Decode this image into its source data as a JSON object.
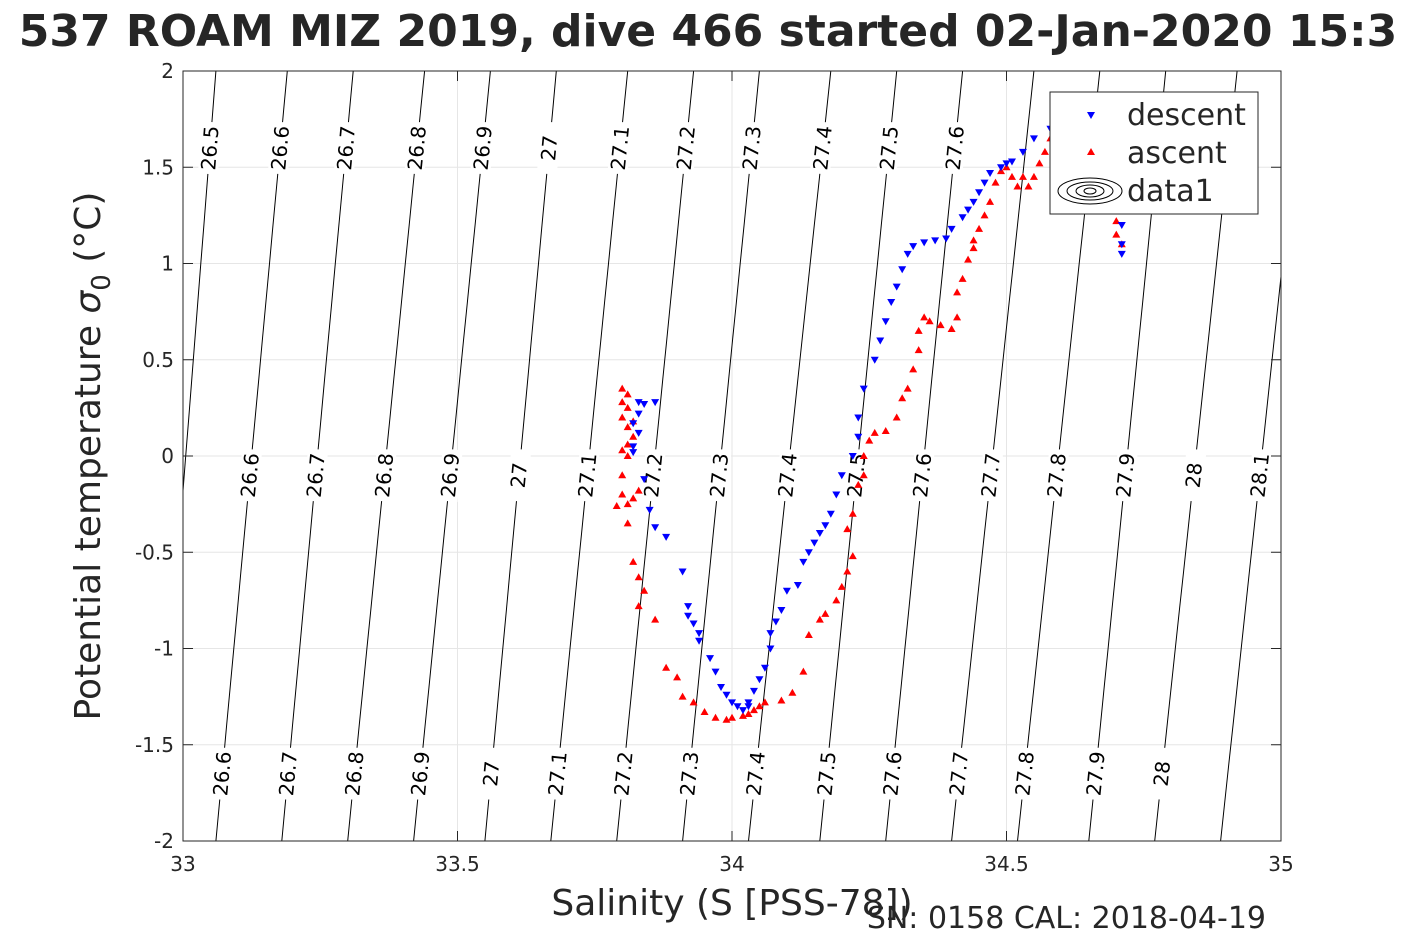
{
  "chart_data": {
    "type": "scatter",
    "title": "537 ROAM MIZ 2019, dive 466 started 02-Jan-2020 15:3",
    "xlabel": "Salinity (S [PSS-78])",
    "ylabel_main": "Potential temperature ",
    "ylabel_sigma": "σ",
    "ylabel_sub": "0",
    "ylabel_unit": " (°C)",
    "footer": "SN: 0158  CAL: 2018-04-19",
    "xlim": [
      33,
      35
    ],
    "ylim": [
      -2,
      2
    ],
    "grid": true,
    "legend_placement": "top-right",
    "xticks": [
      33,
      33.5,
      34,
      34.5,
      35
    ],
    "xtick_labels": [
      "33",
      "33.5",
      "34",
      "34.5",
      "35"
    ],
    "yticks": [
      -2,
      -1.5,
      -1,
      -0.5,
      0,
      0.5,
      1,
      1.5,
      2
    ],
    "ytick_labels": [
      "-2",
      "-1.5",
      "-1",
      "-0.5",
      "0",
      "0.5",
      "1",
      "1.5",
      "2"
    ],
    "colors": {
      "descent": "#0000ff",
      "ascent": "#ff0000",
      "contour": "#000000",
      "grid": "#e6e6e6",
      "axis": "#262626"
    },
    "legend": [
      "descent",
      "ascent",
      "data1"
    ],
    "contours": [
      {
        "x": [
          33.06,
          32.95
        ],
        "label_top": "26.5",
        "label_mid": "26.5"
      },
      {
        "x": [
          33.19,
          33.06
        ],
        "label_top": "26.6",
        "label_mid": "26.6",
        "label_bot": "26.6"
      },
      {
        "x": [
          33.31,
          33.18
        ],
        "label_top": "26.7",
        "label_mid": "26.7",
        "label_bot": "26.7"
      },
      {
        "x": [
          33.44,
          33.3
        ],
        "label_top": "26.8",
        "label_mid": "26.8",
        "label_bot": "26.8"
      },
      {
        "x": [
          33.56,
          33.42
        ],
        "label_top": "26.9",
        "label_mid": "26.9",
        "label_bot": "26.9"
      },
      {
        "x": [
          33.68,
          33.55
        ],
        "label_top": "27",
        "label_mid": "27",
        "label_bot": "27"
      },
      {
        "x": [
          33.81,
          33.67
        ],
        "label_top": "27.1",
        "label_mid": "27.1",
        "label_bot": "27.1"
      },
      {
        "x": [
          33.93,
          33.79
        ],
        "label_top": "27.2",
        "label_mid": "27.2",
        "label_bot": "27.2"
      },
      {
        "x": [
          34.05,
          33.91
        ],
        "label_top": "27.3",
        "label_mid": "27.3",
        "label_bot": "27.3"
      },
      {
        "x": [
          34.18,
          34.03
        ],
        "label_top": "27.4",
        "label_mid": "27.4",
        "label_bot": "27.4"
      },
      {
        "x": [
          34.3,
          34.16
        ],
        "label_top": "27.5",
        "label_mid": "27.5",
        "label_bot": "27.5"
      },
      {
        "x": [
          34.42,
          34.28
        ],
        "label_top": "27.6",
        "label_mid": "27.6",
        "label_bot": "27.6"
      },
      {
        "x": [
          34.55,
          34.4
        ],
        "label_mid": "27.7",
        "label_bot": "27.7"
      },
      {
        "x": [
          34.67,
          34.52
        ],
        "label_mid": "27.8",
        "label_bot": "27.8"
      },
      {
        "x": [
          34.79,
          34.65
        ],
        "label_mid": "27.9",
        "label_bot": "27.9"
      },
      {
        "x": [
          34.92,
          34.77
        ],
        "label_top": "28",
        "label_mid": "28",
        "label_bot": "28"
      },
      {
        "x": [
          35.04,
          34.89
        ],
        "label_mid": "28.1"
      }
    ],
    "series": [
      {
        "name": "descent",
        "marker": "triangle-down",
        "points": [
          [
            33.83,
            0.28
          ],
          [
            33.84,
            0.27
          ],
          [
            33.86,
            0.28
          ],
          [
            33.83,
            0.22
          ],
          [
            33.82,
            0.17
          ],
          [
            33.83,
            0.12
          ],
          [
            33.82,
            0.05
          ],
          [
            33.82,
            0.02
          ],
          [
            33.84,
            -0.12
          ],
          [
            33.85,
            -0.28
          ],
          [
            33.86,
            -0.37
          ],
          [
            33.88,
            -0.42
          ],
          [
            33.91,
            -0.6
          ],
          [
            33.92,
            -0.78
          ],
          [
            33.92,
            -0.83
          ],
          [
            33.93,
            -0.87
          ],
          [
            33.94,
            -0.92
          ],
          [
            33.94,
            -0.96
          ],
          [
            33.96,
            -1.05
          ],
          [
            33.97,
            -1.12
          ],
          [
            33.98,
            -1.2
          ],
          [
            33.99,
            -1.24
          ],
          [
            34.0,
            -1.28
          ],
          [
            34.01,
            -1.3
          ],
          [
            34.02,
            -1.32
          ],
          [
            34.03,
            -1.3
          ],
          [
            34.03,
            -1.28
          ],
          [
            34.04,
            -1.22
          ],
          [
            34.05,
            -1.16
          ],
          [
            34.06,
            -1.1
          ],
          [
            34.07,
            -1.0
          ],
          [
            34.07,
            -0.92
          ],
          [
            34.08,
            -0.86
          ],
          [
            34.09,
            -0.8
          ],
          [
            34.1,
            -0.7
          ],
          [
            34.12,
            -0.67
          ],
          [
            34.13,
            -0.55
          ],
          [
            34.14,
            -0.5
          ],
          [
            34.15,
            -0.45
          ],
          [
            34.16,
            -0.4
          ],
          [
            34.17,
            -0.36
          ],
          [
            34.18,
            -0.3
          ],
          [
            34.19,
            -0.2
          ],
          [
            34.2,
            -0.1
          ],
          [
            34.22,
            0.0
          ],
          [
            34.23,
            0.1
          ],
          [
            34.23,
            0.2
          ],
          [
            34.24,
            0.35
          ],
          [
            34.26,
            0.5
          ],
          [
            34.27,
            0.6
          ],
          [
            34.28,
            0.7
          ],
          [
            34.29,
            0.8
          ],
          [
            34.3,
            0.88
          ],
          [
            34.31,
            0.97
          ],
          [
            34.32,
            1.05
          ],
          [
            34.33,
            1.09
          ],
          [
            34.35,
            1.11
          ],
          [
            34.37,
            1.12
          ],
          [
            34.39,
            1.13
          ],
          [
            34.4,
            1.18
          ],
          [
            34.42,
            1.24
          ],
          [
            34.43,
            1.28
          ],
          [
            34.44,
            1.32
          ],
          [
            34.45,
            1.37
          ],
          [
            34.46,
            1.42
          ],
          [
            34.47,
            1.47
          ],
          [
            34.49,
            1.5
          ],
          [
            34.5,
            1.52
          ],
          [
            34.51,
            1.53
          ],
          [
            34.53,
            1.58
          ],
          [
            34.55,
            1.65
          ],
          [
            34.58,
            1.7
          ],
          [
            34.62,
            1.62
          ],
          [
            34.65,
            1.55
          ],
          [
            34.68,
            1.48
          ],
          [
            34.7,
            1.3
          ],
          [
            34.71,
            1.2
          ],
          [
            34.71,
            1.1
          ],
          [
            34.71,
            1.05
          ]
        ]
      },
      {
        "name": "ascent",
        "marker": "triangle-up",
        "points": [
          [
            33.8,
            0.35
          ],
          [
            33.81,
            0.32
          ],
          [
            33.8,
            0.28
          ],
          [
            33.81,
            0.25
          ],
          [
            33.8,
            0.2
          ],
          [
            33.82,
            0.18
          ],
          [
            33.81,
            0.15
          ],
          [
            33.82,
            0.1
          ],
          [
            33.81,
            0.06
          ],
          [
            33.8,
            0.03
          ],
          [
            33.81,
            0.0
          ],
          [
            33.8,
            -0.1
          ],
          [
            33.8,
            -0.2
          ],
          [
            33.79,
            -0.26
          ],
          [
            33.81,
            -0.25
          ],
          [
            33.82,
            -0.22
          ],
          [
            33.83,
            -0.18
          ],
          [
            33.81,
            -0.35
          ],
          [
            33.82,
            -0.55
          ],
          [
            33.83,
            -0.63
          ],
          [
            33.84,
            -0.7
          ],
          [
            33.83,
            -0.78
          ],
          [
            33.86,
            -0.85
          ],
          [
            33.88,
            -1.1
          ],
          [
            33.9,
            -1.15
          ],
          [
            33.91,
            -1.25
          ],
          [
            33.93,
            -1.28
          ],
          [
            33.95,
            -1.33
          ],
          [
            33.97,
            -1.36
          ],
          [
            33.99,
            -1.37
          ],
          [
            34.0,
            -1.36
          ],
          [
            34.02,
            -1.35
          ],
          [
            34.03,
            -1.34
          ],
          [
            34.04,
            -1.32
          ],
          [
            34.05,
            -1.3
          ],
          [
            34.06,
            -1.28
          ],
          [
            34.09,
            -1.27
          ],
          [
            34.11,
            -1.23
          ],
          [
            34.13,
            -1.12
          ],
          [
            34.14,
            -0.93
          ],
          [
            34.16,
            -0.85
          ],
          [
            34.17,
            -0.82
          ],
          [
            34.19,
            -0.75
          ],
          [
            34.2,
            -0.68
          ],
          [
            34.21,
            -0.6
          ],
          [
            34.22,
            -0.52
          ],
          [
            34.21,
            -0.38
          ],
          [
            34.22,
            -0.3
          ],
          [
            34.23,
            -0.15
          ],
          [
            34.24,
            -0.1
          ],
          [
            34.24,
            0.0
          ],
          [
            34.25,
            0.08
          ],
          [
            34.26,
            0.12
          ],
          [
            34.28,
            0.13
          ],
          [
            34.3,
            0.2
          ],
          [
            34.31,
            0.3
          ],
          [
            34.32,
            0.35
          ],
          [
            34.33,
            0.45
          ],
          [
            34.34,
            0.55
          ],
          [
            34.34,
            0.65
          ],
          [
            34.35,
            0.72
          ],
          [
            34.36,
            0.7
          ],
          [
            34.38,
            0.68
          ],
          [
            34.4,
            0.66
          ],
          [
            34.41,
            0.72
          ],
          [
            34.41,
            0.85
          ],
          [
            34.42,
            0.92
          ],
          [
            34.43,
            1.02
          ],
          [
            34.44,
            1.08
          ],
          [
            34.44,
            1.12
          ],
          [
            34.45,
            1.18
          ],
          [
            34.46,
            1.25
          ],
          [
            34.47,
            1.32
          ],
          [
            34.48,
            1.42
          ],
          [
            34.49,
            1.48
          ],
          [
            34.5,
            1.5
          ],
          [
            34.51,
            1.45
          ],
          [
            34.52,
            1.4
          ],
          [
            34.53,
            1.45
          ],
          [
            34.54,
            1.4
          ],
          [
            34.55,
            1.45
          ],
          [
            34.56,
            1.52
          ],
          [
            34.57,
            1.58
          ],
          [
            34.58,
            1.65
          ],
          [
            34.6,
            1.6
          ],
          [
            34.62,
            1.55
          ],
          [
            34.64,
            1.5
          ],
          [
            34.66,
            1.45
          ],
          [
            34.68,
            1.38
          ],
          [
            34.69,
            1.3
          ],
          [
            34.7,
            1.22
          ],
          [
            34.7,
            1.15
          ],
          [
            34.71,
            1.1
          ]
        ]
      }
    ]
  }
}
